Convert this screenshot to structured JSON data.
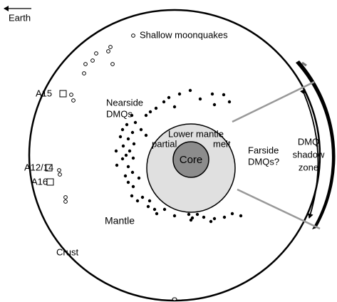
{
  "labels": {
    "earth": "Earth",
    "shallow_moonquakes": "Shallow moonquakes",
    "a15": "A15",
    "nearside_dmqs": [
      "Nearside",
      "DMQs"
    ],
    "lower_mantle": "Lower mantle",
    "partial": "partial",
    "melt": "melt",
    "core": "Core",
    "farside_dmqs": [
      "Farside",
      "DMQs?"
    ],
    "shadow_zone": [
      "DMQ",
      "shadow",
      "zone"
    ],
    "a12_14": "A12/14",
    "a16": "A16",
    "mantle": "Mantle",
    "crust": "Crust"
  }
}
